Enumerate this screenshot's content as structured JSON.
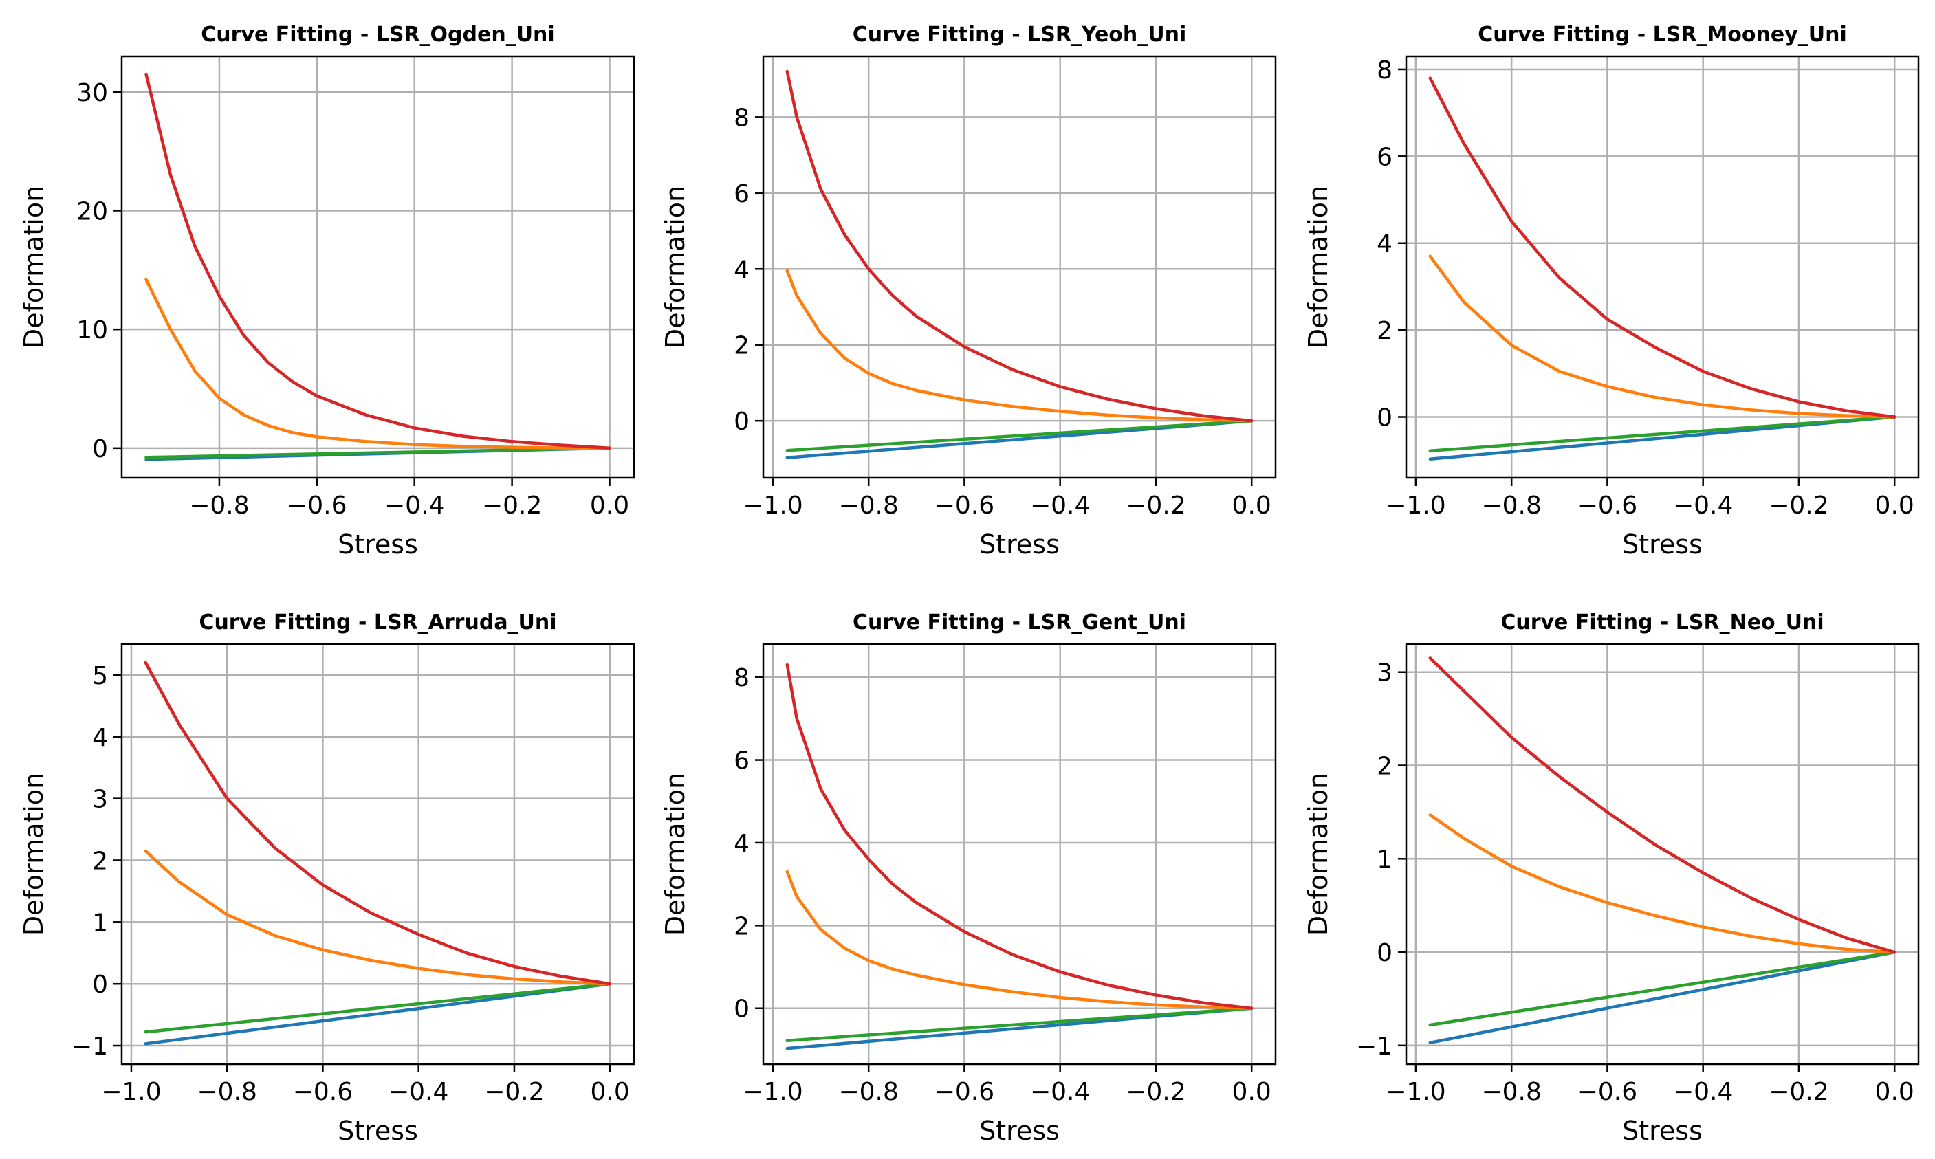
{
  "figure": {
    "xlabel": "Stress",
    "ylabel": "Deformation"
  },
  "series_colors": {
    "blue": "#1f77b4",
    "orange": "#ff7f0e",
    "green": "#2ca02c",
    "red": "#d62728"
  },
  "chart_data": [
    {
      "type": "line",
      "title": "Curve Fitting - LSR_Ogden_Uni",
      "xlabel": "Stress",
      "ylabel": "Deformation",
      "xlim": [
        -1.0,
        0.05
      ],
      "ylim": [
        -2.5,
        33.0
      ],
      "xticks": [
        -0.8,
        -0.6,
        -0.4,
        -0.2,
        0.0
      ],
      "xtick_labels": [
        "−0.8",
        "−0.6",
        "−0.4",
        "−0.2",
        "0.0"
      ],
      "yticks": [
        0,
        10,
        20,
        30
      ],
      "ytick_labels": [
        "0",
        "10",
        "20",
        "30"
      ],
      "grid": true,
      "series": [
        {
          "color": "blue",
          "x": [
            -0.95,
            0.0
          ],
          "y": [
            -0.95,
            0.0
          ]
        },
        {
          "color": "green",
          "x": [
            -0.95,
            0.0
          ],
          "y": [
            -0.78,
            0.0
          ]
        },
        {
          "color": "orange",
          "x": [
            -0.95,
            -0.9,
            -0.85,
            -0.8,
            -0.75,
            -0.7,
            -0.65,
            -0.6,
            -0.5,
            -0.4,
            -0.3,
            -0.2,
            -0.1,
            0.0
          ],
          "y": [
            14.2,
            10.0,
            6.5,
            4.2,
            2.8,
            1.9,
            1.3,
            0.95,
            0.55,
            0.3,
            0.15,
            0.07,
            0.02,
            0.0
          ]
        },
        {
          "color": "red",
          "x": [
            -0.95,
            -0.9,
            -0.85,
            -0.8,
            -0.75,
            -0.7,
            -0.65,
            -0.6,
            -0.5,
            -0.4,
            -0.3,
            -0.2,
            -0.1,
            0.0
          ],
          "y": [
            31.5,
            23.0,
            17.0,
            12.8,
            9.5,
            7.2,
            5.6,
            4.4,
            2.8,
            1.7,
            1.0,
            0.55,
            0.25,
            0.0
          ]
        }
      ]
    },
    {
      "type": "line",
      "title": "Curve Fitting - LSR_Yeoh_Uni",
      "xlabel": "Stress",
      "ylabel": "Deformation",
      "xlim": [
        -1.02,
        0.05
      ],
      "ylim": [
        -1.5,
        9.6
      ],
      "xticks": [
        -1.0,
        -0.8,
        -0.6,
        -0.4,
        -0.2,
        0.0
      ],
      "xtick_labels": [
        "−1.0",
        "−0.8",
        "−0.6",
        "−0.4",
        "−0.2",
        "0.0"
      ],
      "yticks": [
        0,
        2,
        4,
        6,
        8
      ],
      "ytick_labels": [
        "0",
        "2",
        "4",
        "6",
        "8"
      ],
      "grid": true,
      "series": [
        {
          "color": "blue",
          "x": [
            -0.97,
            0.0
          ],
          "y": [
            -0.97,
            0.0
          ]
        },
        {
          "color": "green",
          "x": [
            -0.97,
            0.0
          ],
          "y": [
            -0.78,
            0.0
          ]
        },
        {
          "color": "orange",
          "x": [
            -0.97,
            -0.95,
            -0.9,
            -0.85,
            -0.8,
            -0.75,
            -0.7,
            -0.6,
            -0.5,
            -0.4,
            -0.3,
            -0.2,
            -0.1,
            0.0
          ],
          "y": [
            3.95,
            3.3,
            2.3,
            1.65,
            1.25,
            0.98,
            0.8,
            0.55,
            0.38,
            0.25,
            0.15,
            0.08,
            0.03,
            0.0
          ]
        },
        {
          "color": "red",
          "x": [
            -0.97,
            -0.95,
            -0.9,
            -0.85,
            -0.8,
            -0.75,
            -0.7,
            -0.6,
            -0.5,
            -0.4,
            -0.3,
            -0.2,
            -0.1,
            0.0
          ],
          "y": [
            9.2,
            8.0,
            6.1,
            4.9,
            4.0,
            3.3,
            2.75,
            1.95,
            1.35,
            0.9,
            0.57,
            0.32,
            0.13,
            0.0
          ]
        }
      ]
    },
    {
      "type": "line",
      "title": "Curve Fitting - LSR_Mooney_Uni",
      "xlabel": "Stress",
      "ylabel": "Deformation",
      "xlim": [
        -1.02,
        0.05
      ],
      "ylim": [
        -1.4,
        8.3
      ],
      "xticks": [
        -1.0,
        -0.8,
        -0.6,
        -0.4,
        -0.2,
        0.0
      ],
      "xtick_labels": [
        "−1.0",
        "−0.8",
        "−0.6",
        "−0.4",
        "−0.2",
        "0.0"
      ],
      "yticks": [
        0,
        2,
        4,
        6,
        8
      ],
      "ytick_labels": [
        "0",
        "2",
        "4",
        "6",
        "8"
      ],
      "grid": true,
      "series": [
        {
          "color": "blue",
          "x": [
            -0.97,
            0.0
          ],
          "y": [
            -0.97,
            0.0
          ]
        },
        {
          "color": "green",
          "x": [
            -0.97,
            0.0
          ],
          "y": [
            -0.78,
            0.0
          ]
        },
        {
          "color": "orange",
          "x": [
            -0.97,
            -0.9,
            -0.8,
            -0.7,
            -0.6,
            -0.5,
            -0.4,
            -0.3,
            -0.2,
            -0.1,
            0.0
          ],
          "y": [
            3.7,
            2.65,
            1.65,
            1.05,
            0.7,
            0.45,
            0.28,
            0.16,
            0.08,
            0.03,
            0.0
          ]
        },
        {
          "color": "red",
          "x": [
            -0.97,
            -0.9,
            -0.8,
            -0.7,
            -0.6,
            -0.5,
            -0.4,
            -0.3,
            -0.2,
            -0.1,
            0.0
          ],
          "y": [
            7.8,
            6.3,
            4.5,
            3.2,
            2.25,
            1.6,
            1.05,
            0.65,
            0.35,
            0.14,
            0.0
          ]
        }
      ]
    },
    {
      "type": "line",
      "title": "Curve Fitting - LSR_Arruda_Uni",
      "xlabel": "Stress",
      "ylabel": "Deformation",
      "xlim": [
        -1.02,
        0.05
      ],
      "ylim": [
        -1.3,
        5.5
      ],
      "xticks": [
        -1.0,
        -0.8,
        -0.6,
        -0.4,
        -0.2,
        0.0
      ],
      "xtick_labels": [
        "−1.0",
        "−0.8",
        "−0.6",
        "−0.4",
        "−0.2",
        "0.0"
      ],
      "yticks": [
        -1,
        0,
        1,
        2,
        3,
        4,
        5
      ],
      "ytick_labels": [
        "−1",
        "0",
        "1",
        "2",
        "3",
        "4",
        "5"
      ],
      "grid": true,
      "series": [
        {
          "color": "blue",
          "x": [
            -0.97,
            0.0
          ],
          "y": [
            -0.97,
            0.0
          ]
        },
        {
          "color": "green",
          "x": [
            -0.97,
            0.0
          ],
          "y": [
            -0.78,
            0.0
          ]
        },
        {
          "color": "orange",
          "x": [
            -0.97,
            -0.9,
            -0.8,
            -0.7,
            -0.6,
            -0.5,
            -0.4,
            -0.3,
            -0.2,
            -0.1,
            0.0
          ],
          "y": [
            2.15,
            1.65,
            1.12,
            0.78,
            0.55,
            0.38,
            0.25,
            0.15,
            0.08,
            0.03,
            0.0
          ]
        },
        {
          "color": "red",
          "x": [
            -0.97,
            -0.9,
            -0.8,
            -0.7,
            -0.6,
            -0.5,
            -0.4,
            -0.3,
            -0.2,
            -0.1,
            0.0
          ],
          "y": [
            5.2,
            4.2,
            3.0,
            2.2,
            1.6,
            1.15,
            0.8,
            0.5,
            0.28,
            0.12,
            0.0
          ]
        }
      ]
    },
    {
      "type": "line",
      "title": "Curve Fitting - LSR_Gent_Uni",
      "xlabel": "Stress",
      "ylabel": "Deformation",
      "xlim": [
        -1.02,
        0.05
      ],
      "ylim": [
        -1.35,
        8.8
      ],
      "xticks": [
        -1.0,
        -0.8,
        -0.6,
        -0.4,
        -0.2,
        0.0
      ],
      "xtick_labels": [
        "−1.0",
        "−0.8",
        "−0.6",
        "−0.4",
        "−0.2",
        "0.0"
      ],
      "yticks": [
        0,
        2,
        4,
        6,
        8
      ],
      "ytick_labels": [
        "0",
        "2",
        "4",
        "6",
        "8"
      ],
      "grid": true,
      "series": [
        {
          "color": "blue",
          "x": [
            -0.97,
            0.0
          ],
          "y": [
            -0.97,
            0.0
          ]
        },
        {
          "color": "green",
          "x": [
            -0.97,
            0.0
          ],
          "y": [
            -0.78,
            0.0
          ]
        },
        {
          "color": "orange",
          "x": [
            -0.97,
            -0.95,
            -0.9,
            -0.85,
            -0.8,
            -0.75,
            -0.7,
            -0.6,
            -0.5,
            -0.4,
            -0.3,
            -0.2,
            -0.1,
            0.0
          ],
          "y": [
            3.3,
            2.7,
            1.9,
            1.45,
            1.15,
            0.95,
            0.8,
            0.57,
            0.4,
            0.26,
            0.16,
            0.08,
            0.03,
            0.0
          ]
        },
        {
          "color": "red",
          "x": [
            -0.97,
            -0.95,
            -0.9,
            -0.85,
            -0.8,
            -0.75,
            -0.7,
            -0.6,
            -0.5,
            -0.4,
            -0.3,
            -0.2,
            -0.1,
            0.0
          ],
          "y": [
            8.3,
            7.0,
            5.3,
            4.3,
            3.6,
            3.0,
            2.55,
            1.85,
            1.3,
            0.88,
            0.56,
            0.32,
            0.13,
            0.0
          ]
        }
      ]
    },
    {
      "type": "line",
      "title": "Curve Fitting - LSR_Neo_Uni",
      "xlabel": "Stress",
      "ylabel": "Deformation",
      "xlim": [
        -1.02,
        0.05
      ],
      "ylim": [
        -1.2,
        3.3
      ],
      "xticks": [
        -1.0,
        -0.8,
        -0.6,
        -0.4,
        -0.2,
        0.0
      ],
      "xtick_labels": [
        "−1.0",
        "−0.8",
        "−0.6",
        "−0.4",
        "−0.2",
        "0.0"
      ],
      "yticks": [
        -1,
        0,
        1,
        2,
        3
      ],
      "ytick_labels": [
        "−1",
        "0",
        "1",
        "2",
        "3"
      ],
      "grid": true,
      "series": [
        {
          "color": "blue",
          "x": [
            -0.97,
            0.0
          ],
          "y": [
            -0.97,
            0.0
          ]
        },
        {
          "color": "green",
          "x": [
            -0.97,
            0.0
          ],
          "y": [
            -0.78,
            0.0
          ]
        },
        {
          "color": "orange",
          "x": [
            -0.97,
            -0.9,
            -0.8,
            -0.7,
            -0.6,
            -0.5,
            -0.4,
            -0.3,
            -0.2,
            -0.1,
            0.0
          ],
          "y": [
            1.47,
            1.22,
            0.92,
            0.7,
            0.53,
            0.39,
            0.27,
            0.17,
            0.09,
            0.03,
            0.0
          ]
        },
        {
          "color": "red",
          "x": [
            -0.97,
            -0.9,
            -0.8,
            -0.7,
            -0.6,
            -0.5,
            -0.4,
            -0.3,
            -0.2,
            -0.1,
            0.0
          ],
          "y": [
            3.15,
            2.8,
            2.3,
            1.88,
            1.5,
            1.15,
            0.85,
            0.58,
            0.35,
            0.15,
            0.0
          ]
        }
      ]
    }
  ]
}
